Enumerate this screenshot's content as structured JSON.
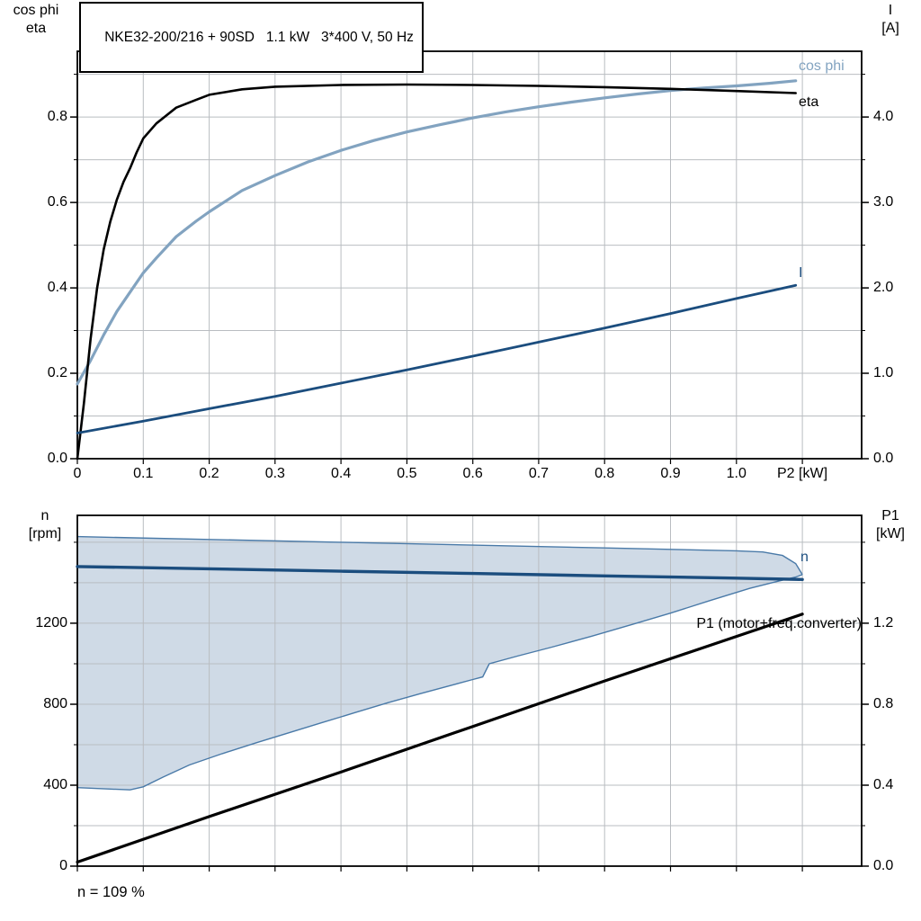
{
  "footer": {
    "speed_note": "n = 109 %"
  },
  "colors": {
    "grid": "#b9bdc1",
    "frame": "#000000",
    "band_fill": "#cfdae6",
    "band_edge": "#4a7aa8",
    "dark_blue": "#1b4d7e",
    "light_blue": "#82a3c0",
    "black": "#000000"
  },
  "chart_data": [
    {
      "name": "cosphi-eta-current-vs-p2",
      "type": "line",
      "title": "NKE32-200/216 + 90SD   1.1 kW   3*400 V, 50 Hz",
      "x_axis": {
        "label": "P2 [kW]",
        "min": 0,
        "max": 1.19,
        "grid_step": 0.1,
        "ticks": [
          {
            "v": 0,
            "label": "0"
          },
          {
            "v": 0.1,
            "label": "0.1"
          },
          {
            "v": 0.2,
            "label": "0.2"
          },
          {
            "v": 0.3,
            "label": "0.3"
          },
          {
            "v": 0.4,
            "label": "0.4"
          },
          {
            "v": 0.5,
            "label": "0.5"
          },
          {
            "v": 0.6,
            "label": "0.6"
          },
          {
            "v": 0.7,
            "label": "0.7"
          },
          {
            "v": 0.8,
            "label": "0.8"
          },
          {
            "v": 0.9,
            "label": "0.9"
          },
          {
            "v": 1.0,
            "label": "1.0"
          }
        ]
      },
      "y_left": {
        "title_lines": [
          "cos phi",
          "eta"
        ],
        "min": 0,
        "max": 0.954,
        "grid_step": 0.1,
        "ticks": [
          {
            "v": 0,
            "label": "0.0"
          },
          {
            "v": 0.2,
            "label": "0.2"
          },
          {
            "v": 0.4,
            "label": "0.4"
          },
          {
            "v": 0.6,
            "label": "0.6"
          },
          {
            "v": 0.8,
            "label": "0.8"
          }
        ]
      },
      "y_right": {
        "title_lines": [
          "I",
          "[A]"
        ],
        "min": 0,
        "max": 4.77,
        "ticks": [
          {
            "v": 0,
            "label": "0.0"
          },
          {
            "v": 1,
            "label": "1.0"
          },
          {
            "v": 2,
            "label": "2.0"
          },
          {
            "v": 3,
            "label": "3.0"
          },
          {
            "v": 4,
            "label": "4.0"
          }
        ]
      },
      "series": [
        {
          "id": "cos-phi",
          "name": "cos phi",
          "axis": "left",
          "color": "#82a3c0",
          "width": 3.2,
          "label": {
            "text": "cos phi",
            "x": 888,
            "y": 64,
            "color": "#82a3c0"
          },
          "points": [
            [
              0,
              0.175
            ],
            [
              0.02,
              0.23
            ],
            [
              0.04,
              0.29
            ],
            [
              0.06,
              0.345
            ],
            [
              0.08,
              0.39
            ],
            [
              0.1,
              0.435
            ],
            [
              0.12,
              0.47
            ],
            [
              0.15,
              0.52
            ],
            [
              0.18,
              0.556
            ],
            [
              0.2,
              0.578
            ],
            [
              0.25,
              0.628
            ],
            [
              0.3,
              0.663
            ],
            [
              0.35,
              0.695
            ],
            [
              0.4,
              0.722
            ],
            [
              0.45,
              0.745
            ],
            [
              0.5,
              0.765
            ],
            [
              0.55,
              0.782
            ],
            [
              0.6,
              0.798
            ],
            [
              0.65,
              0.812
            ],
            [
              0.7,
              0.824
            ],
            [
              0.75,
              0.835
            ],
            [
              0.8,
              0.845
            ],
            [
              0.85,
              0.854
            ],
            [
              0.9,
              0.862
            ],
            [
              0.95,
              0.868
            ],
            [
              1.0,
              0.873
            ],
            [
              1.05,
              0.879
            ],
            [
              1.09,
              0.885
            ]
          ]
        },
        {
          "id": "eta",
          "name": "eta",
          "axis": "left",
          "color": "#000000",
          "width": 2.6,
          "label": {
            "text": "eta",
            "x": 888,
            "y": 104,
            "color": "#000000"
          },
          "points": [
            [
              0,
              0
            ],
            [
              0.01,
              0.13
            ],
            [
              0.02,
              0.28
            ],
            [
              0.03,
              0.4
            ],
            [
              0.04,
              0.49
            ],
            [
              0.05,
              0.555
            ],
            [
              0.06,
              0.607
            ],
            [
              0.07,
              0.648
            ],
            [
              0.08,
              0.68
            ],
            [
              0.09,
              0.717
            ],
            [
              0.1,
              0.75
            ],
            [
              0.12,
              0.785
            ],
            [
              0.15,
              0.822
            ],
            [
              0.18,
              0.84
            ],
            [
              0.2,
              0.852
            ],
            [
              0.25,
              0.865
            ],
            [
              0.3,
              0.871
            ],
            [
              0.4,
              0.875
            ],
            [
              0.5,
              0.876
            ],
            [
              0.6,
              0.875
            ],
            [
              0.7,
              0.873
            ],
            [
              0.8,
              0.87
            ],
            [
              0.9,
              0.866
            ],
            [
              1.0,
              0.861
            ],
            [
              1.09,
              0.856
            ]
          ]
        },
        {
          "id": "current",
          "name": "I",
          "axis": "right",
          "color": "#1b4d7e",
          "width": 2.8,
          "label": {
            "text": "I",
            "x": 888,
            "y": 294,
            "color": "#1b4d7e"
          },
          "points": [
            [
              0,
              0.3
            ],
            [
              0.1,
              0.44
            ],
            [
              0.2,
              0.585
            ],
            [
              0.3,
              0.73
            ],
            [
              0.4,
              0.885
            ],
            [
              0.5,
              1.04
            ],
            [
              0.6,
              1.2
            ],
            [
              0.7,
              1.365
            ],
            [
              0.8,
              1.53
            ],
            [
              0.9,
              1.7
            ],
            [
              1.0,
              1.875
            ],
            [
              1.09,
              2.03
            ]
          ]
        }
      ]
    },
    {
      "name": "speed-p1-vs-p2",
      "type": "line",
      "x_axis": {
        "min": 0,
        "max": 1.19,
        "grid_step": 0.1,
        "ticks": []
      },
      "y_left": {
        "title_lines": [
          "n",
          "[rpm]"
        ],
        "min": 0,
        "max": 1733,
        "grid_step": 200,
        "ticks": [
          {
            "v": 0,
            "label": "0"
          },
          {
            "v": 400,
            "label": "400"
          },
          {
            "v": 800,
            "label": "800"
          },
          {
            "v": 1200,
            "label": "1200"
          }
        ]
      },
      "y_right": {
        "title_lines": [
          "P1",
          "[kW]"
        ],
        "min": 0,
        "max": 1.733,
        "ticks": [
          {
            "v": 0,
            "label": "0.0"
          },
          {
            "v": 0.4,
            "label": "0.4"
          },
          {
            "v": 0.8,
            "label": "0.8"
          },
          {
            "v": 1.2,
            "label": "1.2"
          }
        ]
      },
      "band": {
        "name": "speed-control-range",
        "fill": "#cfdae6",
        "edge_color": "#4a7aa8",
        "upper": [
          [
            0,
            1628
          ],
          [
            0.2,
            1614
          ],
          [
            0.4,
            1600
          ],
          [
            0.6,
            1586
          ],
          [
            0.8,
            1572
          ],
          [
            0.9,
            1565
          ],
          [
            1.0,
            1558
          ],
          [
            1.04,
            1552
          ],
          [
            1.07,
            1535
          ],
          [
            1.09,
            1495
          ],
          [
            1.1,
            1440
          ]
        ],
        "lower": [
          [
            0,
            388
          ],
          [
            0.05,
            381
          ],
          [
            0.08,
            377
          ],
          [
            0.1,
            392
          ],
          [
            0.13,
            440
          ],
          [
            0.17,
            500
          ],
          [
            0.22,
            556
          ],
          [
            0.27,
            608
          ],
          [
            0.32,
            658
          ],
          [
            0.37,
            708
          ],
          [
            0.42,
            757
          ],
          [
            0.47,
            806
          ],
          [
            0.52,
            852
          ],
          [
            0.57,
            896
          ],
          [
            0.6,
            922
          ],
          [
            0.615,
            935
          ],
          [
            0.625,
            1000
          ],
          [
            0.67,
            1040
          ],
          [
            0.72,
            1082
          ],
          [
            0.78,
            1136
          ],
          [
            0.84,
            1192
          ],
          [
            0.9,
            1250
          ],
          [
            0.96,
            1312
          ],
          [
            1.02,
            1372
          ],
          [
            1.06,
            1405
          ],
          [
            1.09,
            1428
          ],
          [
            1.1,
            1440
          ]
        ]
      },
      "series": [
        {
          "id": "speed-n",
          "name": "n",
          "axis": "left",
          "color": "#1b4d7e",
          "width": 3.4,
          "label": {
            "text": "n",
            "x": 890,
            "y": 610,
            "color": "#1b4d7e"
          },
          "points": [
            [
              0,
              1480
            ],
            [
              0.2,
              1469
            ],
            [
              0.4,
              1457
            ],
            [
              0.6,
              1446
            ],
            [
              0.8,
              1434
            ],
            [
              1.0,
              1423
            ],
            [
              1.1,
              1416
            ]
          ]
        },
        {
          "id": "p1",
          "name": "P1 (motor+freq.converter)",
          "axis": "right",
          "color": "#000000",
          "width": 3.2,
          "label": {
            "text": "P1 (motor+freq.converter)",
            "x": 958,
            "y": 684,
            "color": "#000000",
            "align": "right"
          },
          "points": [
            [
              0,
              0.02
            ],
            [
              0.2,
              0.245
            ],
            [
              0.4,
              0.465
            ],
            [
              0.6,
              0.69
            ],
            [
              0.8,
              0.915
            ],
            [
              1.0,
              1.135
            ],
            [
              1.1,
              1.245
            ]
          ]
        }
      ]
    }
  ]
}
